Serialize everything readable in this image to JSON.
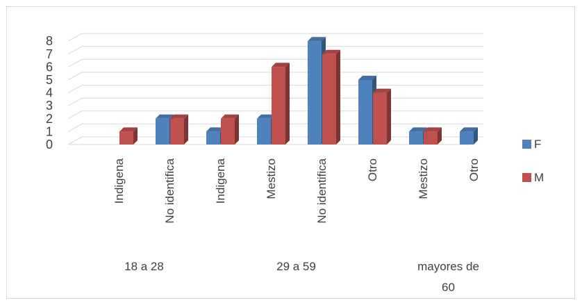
{
  "chart_data": {
    "type": "bar",
    "title": "",
    "xlabel": "",
    "ylabel": "",
    "ylim": [
      0,
      8
    ],
    "yticks": [
      "0",
      "1",
      "2",
      "3",
      "4",
      "5",
      "6",
      "7",
      "8"
    ],
    "grid": true,
    "legend_position": "right",
    "categories": [
      "Indigena",
      "No identifica",
      "Indigena",
      "Mestizo",
      "No identifica",
      "Otro",
      "Mestizo",
      "Otro"
    ],
    "groups": [
      {
        "label": "18 a 28",
        "categories": [
          "Indigena",
          "No identifica"
        ]
      },
      {
        "label": "29 a 59",
        "categories": [
          "Indigena",
          "Mestizo",
          "No identifica",
          "Otro"
        ]
      },
      {
        "label": "mayores de 60",
        "categories": [
          "Mestizo",
          "Otro"
        ]
      }
    ],
    "series": [
      {
        "name": "F",
        "color": "#4f81bd",
        "values": [
          0,
          2,
          1,
          2,
          8,
          5,
          1,
          1
        ]
      },
      {
        "name": "M",
        "color": "#c0504d",
        "values": [
          1,
          2,
          2,
          6,
          7,
          4,
          1,
          0
        ]
      }
    ]
  }
}
